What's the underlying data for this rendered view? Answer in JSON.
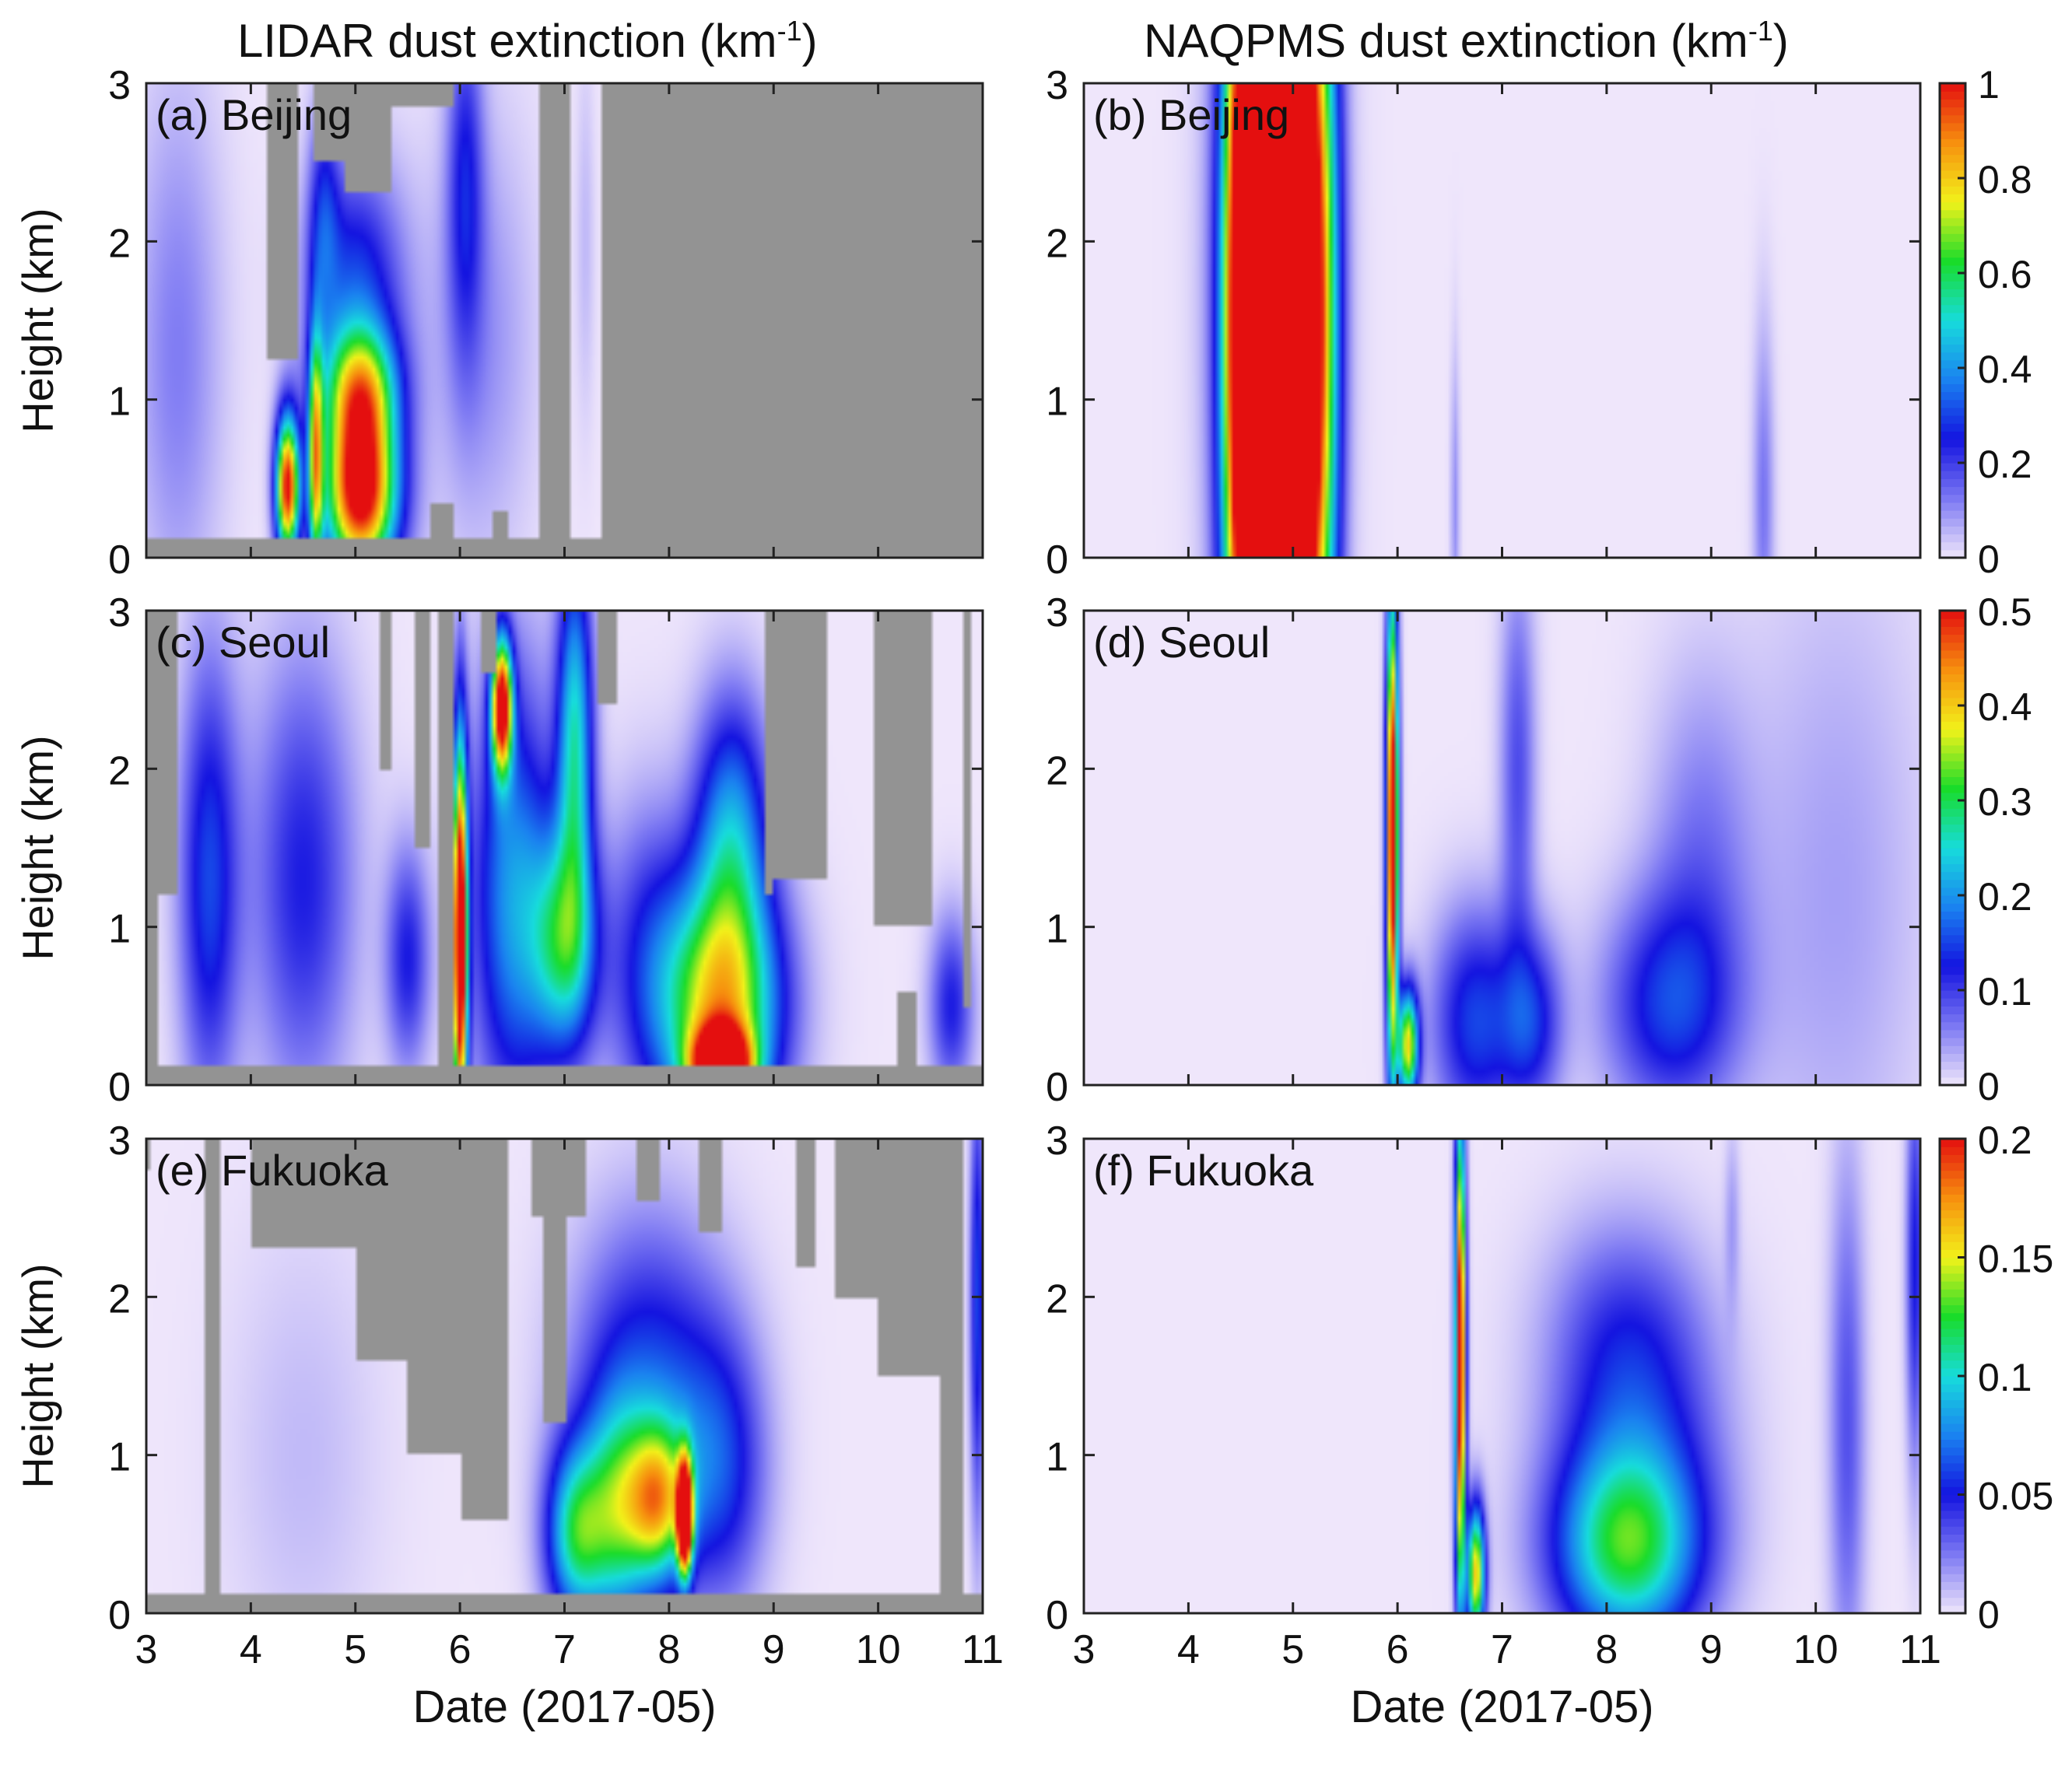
{
  "headers": {
    "left": "LIDAR dust extinction (km",
    "right": "NAQPMS dust extinction (km",
    "exp": "-1",
    "close": ")"
  },
  "chart_data": {
    "type": "heatmap",
    "xlabel": "Date (2017-05)",
    "ylabel": "Height (km)",
    "xlim": [
      3,
      11
    ],
    "ylim": [
      0,
      3
    ],
    "xticks": [
      3,
      4,
      5,
      6,
      7,
      8,
      9,
      10,
      11
    ],
    "yticks": [
      0,
      1,
      2,
      3
    ],
    "colormap": [
      "#efe6fb",
      "#7c78f3",
      "#1414e0",
      "#1a82f0",
      "#17dcdc",
      "#19dc2a",
      "#f2f21a",
      "#f7900e",
      "#e40f0f"
    ],
    "nodata_color": "#939393",
    "panels": [
      {
        "id": "a",
        "label": "(a) Beijing",
        "station": "Beijing",
        "source": "LIDAR",
        "col": 0,
        "row": 0,
        "cmax": 1,
        "nodata": [
          [
            4.15,
            4.45,
            1.25,
            3.0
          ],
          [
            4.6,
            4.9,
            2.5,
            3.0
          ],
          [
            4.9,
            5.35,
            2.3,
            3.0
          ],
          [
            5.35,
            5.95,
            2.85,
            3.0
          ],
          [
            6.75,
            7.05,
            0.0,
            3.0
          ],
          [
            7.35,
            11.0,
            0.0,
            3.0
          ],
          [
            3.0,
            7.35,
            0.0,
            0.13
          ],
          [
            5.7,
            5.95,
            0.13,
            0.35
          ],
          [
            6.3,
            6.45,
            0.13,
            0.3
          ]
        ],
        "blobs": [
          {
            "x": 4.35,
            "y": 0.45,
            "sx": 0.08,
            "sy": 0.32,
            "v": 1.0
          },
          {
            "x": 4.62,
            "y": 0.65,
            "sx": 0.05,
            "sy": 0.55,
            "v": 0.65
          },
          {
            "x": 5.05,
            "y": 0.4,
            "sx": 0.25,
            "sy": 0.38,
            "v": 1.05
          },
          {
            "x": 5.05,
            "y": 1.05,
            "sx": 0.25,
            "sy": 0.3,
            "v": 0.6
          },
          {
            "x": 5.0,
            "y": 1.7,
            "sx": 0.32,
            "sy": 0.55,
            "v": 0.3
          },
          {
            "x": 4.7,
            "y": 2.2,
            "sx": 0.1,
            "sy": 0.5,
            "v": 0.2
          },
          {
            "x": 3.3,
            "y": 1.3,
            "sx": 0.3,
            "sy": 1.2,
            "v": 0.12
          },
          {
            "x": 6.05,
            "y": 2.4,
            "sx": 0.12,
            "sy": 0.8,
            "v": 0.22
          },
          {
            "x": 6.2,
            "y": 1.4,
            "sx": 0.35,
            "sy": 1.0,
            "v": 0.1
          },
          {
            "x": 7.2,
            "y": 2.0,
            "sx": 0.06,
            "sy": 0.8,
            "v": 0.05
          }
        ]
      },
      {
        "id": "b",
        "label": "(b) Beijing",
        "station": "Beijing",
        "source": "NAQPMS",
        "col": 1,
        "row": 0,
        "cmax": 1,
        "colorbar_ticks": [
          0,
          0.2,
          0.4,
          0.6,
          0.8,
          1
        ],
        "colorbar_labels": [
          "0",
          "0.2",
          "0.4",
          "0.6",
          "0.8",
          "1"
        ],
        "nodata": [],
        "blobs": [
          {
            "x": 4.55,
            "y": 1.5,
            "sx": 0.14,
            "sy": 2.0,
            "v": 1.2
          },
          {
            "x": 5.05,
            "y": 1.5,
            "sx": 0.14,
            "sy": 2.0,
            "v": 1.2
          },
          {
            "x": 4.82,
            "y": 1.5,
            "sx": 0.3,
            "sy": 2.2,
            "v": 0.8
          },
          {
            "x": 5.3,
            "y": 1.5,
            "sx": 0.12,
            "sy": 2.0,
            "v": 0.45
          },
          {
            "x": 6.55,
            "y": 0.3,
            "sx": 0.03,
            "sy": 0.7,
            "v": 0.1
          },
          {
            "x": 9.5,
            "y": 0.35,
            "sx": 0.07,
            "sy": 0.8,
            "v": 0.13
          }
        ]
      },
      {
        "id": "c",
        "label": "(c) Seoul",
        "station": "Seoul",
        "source": "LIDAR",
        "col": 0,
        "row": 1,
        "cmax": 0.5,
        "nodata": [
          [
            3.0,
            11.0,
            0.0,
            0.13
          ],
          [
            3.0,
            3.1,
            0.13,
            3.0
          ],
          [
            3.0,
            3.3,
            1.2,
            3.0
          ],
          [
            5.25,
            5.35,
            2.0,
            3.0
          ],
          [
            5.55,
            5.7,
            1.5,
            3.0
          ],
          [
            5.8,
            5.95,
            0.13,
            3.0
          ],
          [
            6.2,
            6.35,
            2.6,
            3.0
          ],
          [
            7.3,
            7.5,
            2.4,
            3.0
          ],
          [
            8.9,
            9.0,
            1.2,
            3.0
          ],
          [
            9.0,
            9.5,
            1.3,
            3.0
          ],
          [
            9.95,
            10.5,
            1.0,
            3.0
          ],
          [
            10.2,
            10.35,
            0.13,
            0.6
          ],
          [
            10.8,
            10.9,
            0.5,
            3.0
          ]
        ],
        "blobs": [
          {
            "x": 6.0,
            "y": 0.9,
            "sx": 0.05,
            "sy": 0.9,
            "v": 0.6
          },
          {
            "x": 6.4,
            "y": 2.4,
            "sx": 0.07,
            "sy": 0.3,
            "v": 0.5
          },
          {
            "x": 6.5,
            "y": 1.2,
            "sx": 0.28,
            "sy": 1.0,
            "v": 0.2
          },
          {
            "x": 7.0,
            "y": 0.9,
            "sx": 0.22,
            "sy": 0.5,
            "v": 0.25
          },
          {
            "x": 7.1,
            "y": 2.2,
            "sx": 0.12,
            "sy": 0.8,
            "v": 0.25
          },
          {
            "x": 8.5,
            "y": 0.5,
            "sx": 0.4,
            "sy": 0.55,
            "v": 0.38
          },
          {
            "x": 8.5,
            "y": 0.1,
            "sx": 0.2,
            "sy": 0.18,
            "v": 0.5
          },
          {
            "x": 8.6,
            "y": 1.6,
            "sx": 0.25,
            "sy": 0.6,
            "v": 0.2
          },
          {
            "x": 3.6,
            "y": 1.3,
            "sx": 0.2,
            "sy": 1.0,
            "v": 0.15
          },
          {
            "x": 4.5,
            "y": 1.3,
            "sx": 0.35,
            "sy": 1.0,
            "v": 0.12
          },
          {
            "x": 5.5,
            "y": 0.8,
            "sx": 0.15,
            "sy": 0.5,
            "v": 0.12
          },
          {
            "x": 7.8,
            "y": 0.8,
            "sx": 0.3,
            "sy": 0.7,
            "v": 0.1
          },
          {
            "x": 10.7,
            "y": 0.5,
            "sx": 0.15,
            "sy": 0.4,
            "v": 0.12
          }
        ]
      },
      {
        "id": "d",
        "label": "(d) Seoul",
        "station": "Seoul",
        "source": "NAQPMS",
        "col": 1,
        "row": 1,
        "cmax": 0.5,
        "colorbar_ticks": [
          0,
          0.1,
          0.2,
          0.3,
          0.4,
          0.5
        ],
        "colorbar_labels": [
          "0",
          "0.1",
          "0.2",
          "0.3",
          "0.4",
          "0.5"
        ],
        "nodata": [],
        "blobs": [
          {
            "x": 5.95,
            "y": 1.6,
            "sx": 0.04,
            "sy": 1.1,
            "v": 0.58
          },
          {
            "x": 6.1,
            "y": 0.25,
            "sx": 0.07,
            "sy": 0.25,
            "v": 0.38
          },
          {
            "x": 6.75,
            "y": 0.4,
            "sx": 0.3,
            "sy": 0.5,
            "v": 0.15
          },
          {
            "x": 7.15,
            "y": 2.0,
            "sx": 0.12,
            "sy": 0.9,
            "v": 0.09
          },
          {
            "x": 7.3,
            "y": 0.4,
            "sx": 0.2,
            "sy": 0.4,
            "v": 0.12
          },
          {
            "x": 8.6,
            "y": 0.5,
            "sx": 0.45,
            "sy": 0.5,
            "v": 0.14
          },
          {
            "x": 8.9,
            "y": 1.5,
            "sx": 0.35,
            "sy": 0.8,
            "v": 0.06
          },
          {
            "x": 10.2,
            "y": 1.2,
            "sx": 0.6,
            "sy": 1.5,
            "v": 0.04
          }
        ]
      },
      {
        "id": "e",
        "label": "(e) Fukuoka",
        "station": "Fukuoka",
        "source": "LIDAR",
        "col": 0,
        "row": 2,
        "cmax": 0.2,
        "nodata": [
          [
            3.0,
            11.0,
            0.0,
            0.12
          ],
          [
            3.0,
            3.05,
            2.8,
            3.0
          ],
          [
            3.55,
            3.7,
            0.12,
            3.0
          ],
          [
            4.0,
            5.0,
            2.3,
            3.0
          ],
          [
            5.0,
            5.5,
            1.6,
            3.0
          ],
          [
            5.5,
            6.0,
            1.0,
            3.0
          ],
          [
            6.0,
            6.45,
            0.6,
            3.0
          ],
          [
            6.7,
            7.2,
            2.5,
            3.0
          ],
          [
            6.8,
            7.0,
            1.2,
            2.5
          ],
          [
            7.7,
            7.9,
            2.6,
            3.0
          ],
          [
            8.3,
            8.5,
            2.4,
            3.0
          ],
          [
            9.2,
            9.4,
            2.2,
            3.0
          ],
          [
            9.6,
            10.0,
            2.0,
            3.0
          ],
          [
            10.0,
            10.8,
            1.5,
            3.0
          ],
          [
            10.6,
            10.8,
            0.12,
            3.0
          ]
        ],
        "blobs": [
          {
            "x": 8.15,
            "y": 0.6,
            "sx": 0.05,
            "sy": 0.25,
            "v": 0.22
          },
          {
            "x": 7.9,
            "y": 0.7,
            "sx": 0.2,
            "sy": 0.35,
            "v": 0.12
          },
          {
            "x": 7.5,
            "y": 0.6,
            "sx": 0.22,
            "sy": 0.5,
            "v": 0.09
          },
          {
            "x": 7.1,
            "y": 0.5,
            "sx": 0.2,
            "sy": 0.4,
            "v": 0.1
          },
          {
            "x": 7.8,
            "y": 1.4,
            "sx": 0.5,
            "sy": 0.75,
            "v": 0.06
          },
          {
            "x": 8.5,
            "y": 0.9,
            "sx": 0.3,
            "sy": 0.6,
            "v": 0.05
          },
          {
            "x": 10.95,
            "y": 2.0,
            "sx": 0.05,
            "sy": 1.0,
            "v": 0.06
          },
          {
            "x": 4.5,
            "y": 1.0,
            "sx": 0.5,
            "sy": 1.0,
            "v": 0.01
          }
        ]
      },
      {
        "id": "f",
        "label": "(f) Fukuoka",
        "station": "Fukuoka",
        "source": "NAQPMS",
        "col": 1,
        "row": 2,
        "cmax": 0.2,
        "colorbar_ticks": [
          0,
          0.05,
          0.1,
          0.15,
          0.2
        ],
        "colorbar_labels": [
          "0",
          "0.05",
          "0.1",
          "0.15",
          "0.2"
        ],
        "nodata": [],
        "blobs": [
          {
            "x": 6.6,
            "y": 1.6,
            "sx": 0.035,
            "sy": 1.1,
            "v": 0.23
          },
          {
            "x": 6.75,
            "y": 0.25,
            "sx": 0.06,
            "sy": 0.3,
            "v": 0.16
          },
          {
            "x": 8.2,
            "y": 0.4,
            "sx": 0.5,
            "sy": 0.45,
            "v": 0.11
          },
          {
            "x": 8.3,
            "y": 1.2,
            "sx": 0.55,
            "sy": 0.7,
            "v": 0.045
          },
          {
            "x": 8.1,
            "y": 1.8,
            "sx": 0.5,
            "sy": 0.5,
            "v": 0.02
          },
          {
            "x": 10.3,
            "y": 1.2,
            "sx": 0.12,
            "sy": 1.2,
            "v": 0.035
          },
          {
            "x": 10.95,
            "y": 2.2,
            "sx": 0.06,
            "sy": 0.9,
            "v": 0.05
          },
          {
            "x": 9.2,
            "y": 2.5,
            "sx": 0.05,
            "sy": 0.4,
            "v": 0.015
          }
        ]
      }
    ]
  }
}
